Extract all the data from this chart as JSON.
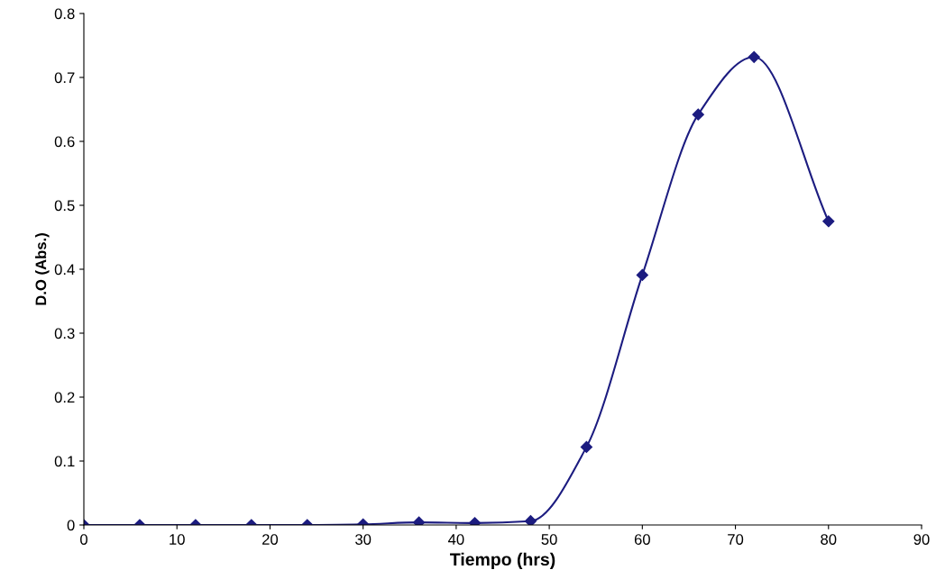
{
  "chart_data": {
    "type": "line",
    "xlabel": "Tiempo (hrs)",
    "ylabel": "D.O (Abs.)",
    "x": [
      0,
      6,
      12,
      18,
      24,
      30,
      36,
      42,
      48,
      54,
      60,
      66,
      72,
      80
    ],
    "series": [
      {
        "color": "#1c1c80",
        "values": [
          0,
          0,
          0,
          0,
          0,
          0.001,
          0.004,
          0.003,
          0.006,
          0.122,
          0.391,
          0.642,
          0.732,
          0.475
        ]
      }
    ],
    "xlim": [
      0,
      90
    ],
    "xticks": [
      0,
      10,
      20,
      30,
      40,
      50,
      60,
      70,
      80,
      90
    ],
    "ylim": [
      0,
      0.8
    ],
    "yticks": [
      0,
      0.1,
      0.2,
      0.3,
      0.4,
      0.5,
      0.6,
      0.7,
      0.8
    ],
    "marker": "diamond",
    "line_style": "solid",
    "grid": false
  }
}
